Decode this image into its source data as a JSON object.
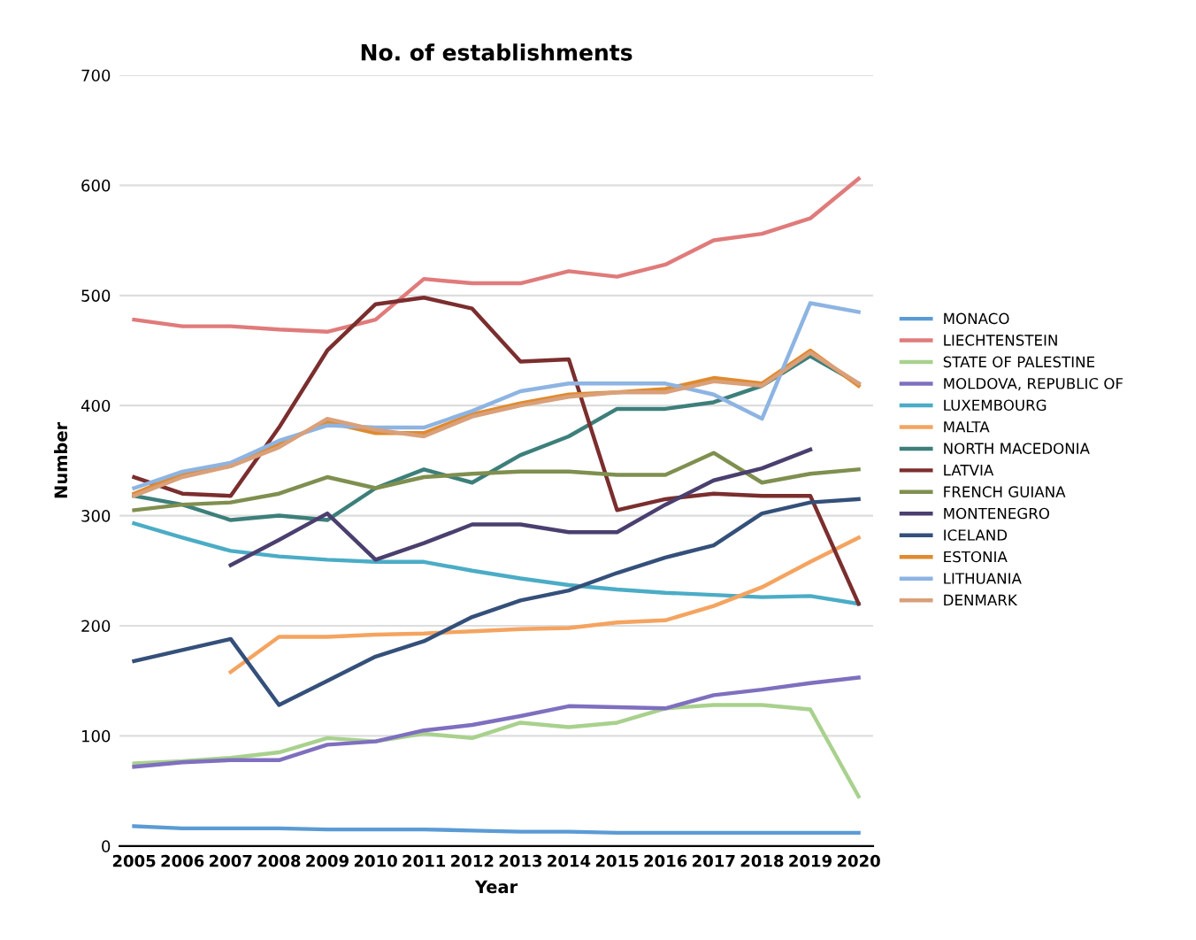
{
  "chart_data": {
    "type": "line",
    "title": "No. of establishments",
    "xlabel": "Year",
    "ylabel": "Number",
    "categories": [
      "2005",
      "2006",
      "2007",
      "2008",
      "2009",
      "2010",
      "2011",
      "2012",
      "2013",
      "2014",
      "2015",
      "2016",
      "2017",
      "2018",
      "2019",
      "2020"
    ],
    "ylim": [
      0,
      700
    ],
    "yticks": [
      0,
      100,
      200,
      300,
      400,
      500,
      600,
      700
    ],
    "grid": "y",
    "legend": "right",
    "marker": "none",
    "line_style": "solid",
    "series": [
      {
        "name": "MONACO",
        "color": "#5b9bd5",
        "values": [
          18,
          16,
          16,
          16,
          15,
          15,
          15,
          14,
          13,
          13,
          12,
          12,
          12,
          12,
          12,
          12
        ]
      },
      {
        "name": "LIECHTENSTEIN",
        "color": "#e07b7b",
        "values": [
          478,
          472,
          472,
          469,
          467,
          478,
          515,
          511,
          511,
          522,
          517,
          528,
          550,
          556,
          570,
          606
        ]
      },
      {
        "name": "STATE OF PALESTINE",
        "color": "#a9d18e",
        "values": [
          75,
          77,
          80,
          85,
          98,
          95,
          102,
          98,
          112,
          108,
          112,
          125,
          128,
          128,
          124,
          45
        ]
      },
      {
        "name": "MOLDOVA, REPUBLIC OF",
        "color": "#7f6fbf",
        "values": [
          72,
          76,
          78,
          78,
          92,
          95,
          105,
          110,
          118,
          127,
          126,
          125,
          137,
          142,
          148,
          153
        ]
      },
      {
        "name": "LUXEMBOURG",
        "color": "#4bacc6",
        "values": [
          293,
          280,
          268,
          263,
          260,
          258,
          258,
          250,
          243,
          237,
          233,
          230,
          228,
          226,
          227,
          220
        ]
      },
      {
        "name": "MALTA",
        "color": "#f4a460",
        "values": [
          null,
          null,
          158,
          190,
          190,
          192,
          193,
          195,
          197,
          198,
          203,
          205,
          218,
          235,
          258,
          280
        ]
      },
      {
        "name": "NORTH MACEDONIA",
        "color": "#3d7f7a",
        "values": [
          318,
          310,
          296,
          300,
          296,
          325,
          342,
          330,
          355,
          372,
          397,
          397,
          403,
          418,
          445,
          420
        ]
      },
      {
        "name": "LATVIA",
        "color": "#7b2e2e",
        "values": [
          335,
          320,
          318,
          380,
          450,
          492,
          498,
          488,
          440,
          442,
          305,
          315,
          320,
          318,
          318,
          220
        ]
      },
      {
        "name": "FRENCH GUIANA",
        "color": "#7f8f4f",
        "values": [
          305,
          310,
          312,
          320,
          335,
          325,
          335,
          338,
          340,
          340,
          337,
          337,
          357,
          330,
          338,
          342
        ]
      },
      {
        "name": "MONTENEGRO",
        "color": "#4b3f6f",
        "values": [
          null,
          null,
          255,
          278,
          302,
          260,
          275,
          292,
          292,
          285,
          285,
          310,
          332,
          343,
          360,
          null
        ]
      },
      {
        "name": "ICELAND",
        "color": "#34507a",
        "values": [
          168,
          178,
          188,
          128,
          150,
          172,
          186,
          208,
          223,
          232,
          248,
          262,
          273,
          302,
          312,
          315
        ]
      },
      {
        "name": "ESTONIA",
        "color": "#e08a2e",
        "values": [
          320,
          338,
          345,
          365,
          385,
          375,
          375,
          392,
          402,
          410,
          412,
          415,
          425,
          420,
          450,
          418
        ]
      },
      {
        "name": "LITHUANIA",
        "color": "#8db4e2",
        "values": [
          325,
          340,
          348,
          368,
          382,
          380,
          380,
          395,
          413,
          420,
          420,
          420,
          410,
          388,
          493,
          485
        ]
      },
      {
        "name": "DENMARK",
        "color": "#d9a07a",
        "values": [
          318,
          335,
          345,
          362,
          388,
          378,
          372,
          390,
          400,
          408,
          412,
          412,
          422,
          418,
          448,
          420
        ]
      }
    ]
  }
}
